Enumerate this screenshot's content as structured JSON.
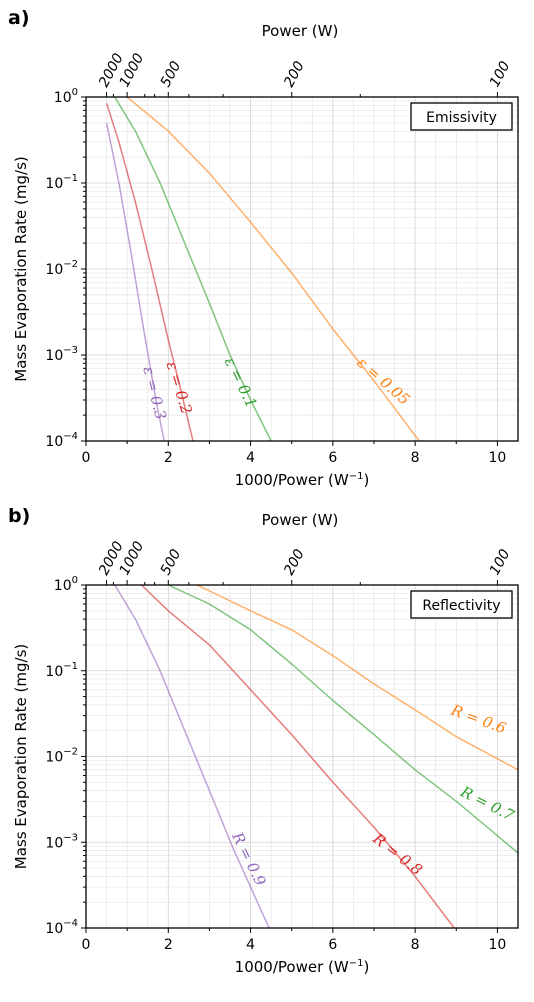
{
  "chart_data": [
    {
      "type": "line",
      "panel_label": "a)",
      "legend_title": "Emissivity",
      "legend_position": "top-right",
      "xlabel": "1000/Power (W",
      "xlabel_sup": "−1",
      "xlabel_end": ")",
      "ylabel": "Mass Evaporation Rate (mg/s)",
      "x2label": "Power (W)",
      "xlim": [
        0,
        10.5
      ],
      "ylim": [
        0.0001,
        1
      ],
      "yscale": "log",
      "grid": true,
      "x_ticks": [
        "0",
        "2",
        "4",
        "6",
        "8",
        "10"
      ],
      "y_ticks": [
        {
          "base": "10",
          "exp": "0"
        },
        {
          "base": "10",
          "exp": "-1"
        },
        {
          "base": "10",
          "exp": "-2"
        },
        {
          "base": "10",
          "exp": "-3"
        },
        {
          "base": "10",
          "exp": "-4"
        }
      ],
      "top_ticks": [
        "2000",
        "1000",
        "500",
        "200",
        "100"
      ],
      "series": [
        {
          "name": "ε = 0.3",
          "color": "#9467bd",
          "x": [
            0.5,
            0.8,
            1.1,
            1.4,
            1.7,
            1.9
          ],
          "y": [
            0.5,
            0.1,
            0.015,
            0.002,
            0.0003,
            0.0001
          ]
        },
        {
          "name": "ε = 0.2",
          "color": "#d62728",
          "x": [
            0.5,
            0.8,
            1.2,
            1.6,
            2.0,
            2.3,
            2.6
          ],
          "y": [
            0.85,
            0.3,
            0.06,
            0.01,
            0.0015,
            0.0004,
            0.0001
          ]
        },
        {
          "name": "ε = 0.1",
          "color": "#2ca02c",
          "x": [
            0.7,
            1.2,
            1.8,
            2.4,
            3.0,
            3.5,
            4.0,
            4.5
          ],
          "y": [
            1.0,
            0.4,
            0.1,
            0.02,
            0.004,
            0.001,
            0.0003,
            0.0001
          ]
        },
        {
          "name": "ε = 0.05",
          "color": "#ff7f0e",
          "x": [
            1.0,
            2.0,
            3.0,
            4.0,
            5.0,
            6.0,
            7.0,
            8.1
          ],
          "y": [
            1.0,
            0.4,
            0.13,
            0.035,
            0.009,
            0.002,
            0.0005,
            0.0001
          ]
        }
      ]
    },
    {
      "type": "line",
      "panel_label": "b)",
      "legend_title": "Reflectivity",
      "legend_position": "top-right",
      "xlabel": "1000/Power (W",
      "xlabel_sup": "−1",
      "xlabel_end": ")",
      "ylabel": "Mass Evaporation Rate (mg/s)",
      "x2label": "Power (W)",
      "xlim": [
        0,
        10.5
      ],
      "ylim": [
        0.0001,
        1
      ],
      "yscale": "log",
      "grid": true,
      "x_ticks": [
        "0",
        "2",
        "4",
        "6",
        "8",
        "10"
      ],
      "y_ticks": [
        {
          "base": "10",
          "exp": "0"
        },
        {
          "base": "10",
          "exp": "-1"
        },
        {
          "base": "10",
          "exp": "-2"
        },
        {
          "base": "10",
          "exp": "-3"
        },
        {
          "base": "10",
          "exp": "-4"
        }
      ],
      "top_ticks": [
        "2000",
        "1000",
        "500",
        "200",
        "100"
      ],
      "series": [
        {
          "name": "R = 0.9",
          "color": "#9467bd",
          "x": [
            0.7,
            1.2,
            1.8,
            2.4,
            3.0,
            3.6,
            4.0,
            4.45
          ],
          "y": [
            1.0,
            0.4,
            0.1,
            0.02,
            0.004,
            0.0008,
            0.0003,
            0.0001
          ]
        },
        {
          "name": "R = 0.8",
          "color": "#d62728",
          "x": [
            1.35,
            2.0,
            3.0,
            4.0,
            5.0,
            6.0,
            7.0,
            8.0,
            8.95
          ],
          "y": [
            1.0,
            0.5,
            0.2,
            0.06,
            0.018,
            0.005,
            0.0015,
            0.0004,
            0.0001
          ]
        },
        {
          "name": "R = 0.7",
          "color": "#2ca02c",
          "x": [
            2.0,
            3.0,
            4.0,
            5.0,
            6.0,
            7.0,
            8.0,
            9.0,
            10.5
          ],
          "y": [
            1.0,
            0.6,
            0.3,
            0.12,
            0.045,
            0.018,
            0.007,
            0.003,
            0.00075
          ]
        },
        {
          "name": "R = 0.6",
          "color": "#ff7f0e",
          "x": [
            2.7,
            4.0,
            5.0,
            6.0,
            7.0,
            8.0,
            9.0,
            10.5
          ],
          "y": [
            1.0,
            0.5,
            0.3,
            0.15,
            0.07,
            0.035,
            0.017,
            0.007
          ]
        }
      ]
    }
  ]
}
